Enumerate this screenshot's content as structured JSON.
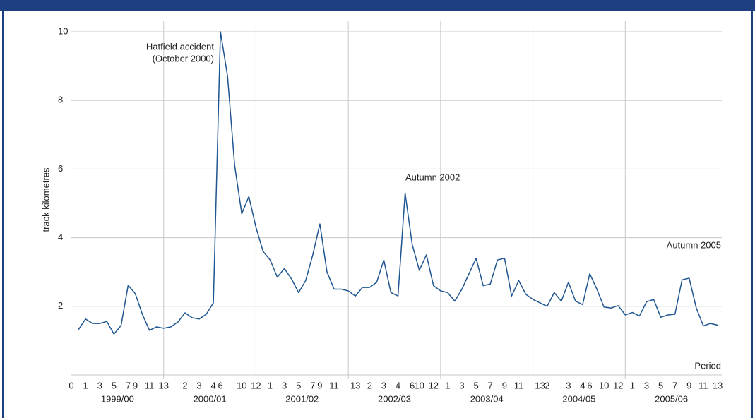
{
  "chart_data": {
    "type": "line",
    "y_label": "track kilometres",
    "x_label": "Period",
    "annotations": [
      "Hatfield accident",
      "(October 2000)",
      "Autumn 2002",
      "Autumn 2005"
    ],
    "x": [
      1,
      2,
      3,
      4,
      5,
      6,
      7,
      8,
      9,
      10,
      11,
      12,
      13,
      14,
      15,
      16,
      17,
      18,
      19,
      20,
      21,
      22,
      23,
      24,
      25,
      26,
      27,
      28,
      29,
      30,
      31,
      32,
      33,
      34,
      35,
      36,
      37,
      38,
      39,
      40,
      41,
      42,
      43,
      44,
      45,
      46,
      47,
      48,
      49,
      50,
      51,
      52,
      53,
      54,
      55,
      56,
      57,
      58,
      59,
      60,
      61,
      62,
      63,
      64,
      65,
      66,
      67,
      68,
      69,
      70,
      71,
      72,
      73,
      74,
      75,
      76,
      77,
      78,
      79,
      80,
      81,
      82,
      83,
      84,
      85,
      86,
      87,
      88,
      89,
      90,
      91
    ],
    "series": [
      {
        "color": "#1f5591",
        "values": [
          1.32,
          1.63,
          1.5,
          1.5,
          1.56,
          1.19,
          1.44,
          2.61,
          2.37,
          1.77,
          1.3,
          1.4,
          1.36,
          1.4,
          1.54,
          1.81,
          1.67,
          1.63,
          1.77,
          2.1,
          10.0,
          8.7,
          6.1,
          4.7,
          5.2,
          4.3,
          3.6,
          3.35,
          2.85,
          3.1,
          2.8,
          2.4,
          2.75,
          3.5,
          4.4,
          3.0,
          2.5,
          2.5,
          2.45,
          2.3,
          2.55,
          2.55,
          2.7,
          3.35,
          2.4,
          2.3,
          5.3,
          3.8,
          3.05,
          3.5,
          2.6,
          2.45,
          2.4,
          2.15,
          2.5,
          2.95,
          3.4,
          2.6,
          2.65,
          3.35,
          3.4,
          2.3,
          2.75,
          2.35,
          2.2,
          2.1,
          2.0,
          2.4,
          2.15,
          2.7,
          2.15,
          2.05,
          2.95,
          2.5,
          1.98,
          1.95,
          2.02,
          1.75,
          1.82,
          1.72,
          2.13,
          2.2,
          1.68,
          1.75,
          1.77,
          2.77,
          2.82,
          1.95,
          1.43,
          1.5,
          1.45
        ]
      }
    ],
    "xlim": [
      0,
      91
    ],
    "ylim": [
      0,
      10
    ],
    "yticks": [
      2,
      4,
      6,
      8,
      10
    ],
    "xticks": [
      0,
      {
        "value": 2,
        "label": "1"
      },
      {
        "value": 4,
        "label": "3"
      },
      {
        "value": 6,
        "label": "5"
      },
      {
        "value": 8,
        "label": "7"
      },
      {
        "value": 9,
        "label": "9"
      },
      {
        "value": 11,
        "label": "11"
      },
      13,
      {
        "value": 16,
        "label": "2"
      },
      {
        "value": 18,
        "label": "3"
      },
      {
        "value": 20,
        "label": "4"
      },
      {
        "value": 21,
        "label": "6"
      },
      {
        "value": 24,
        "label": "10"
      },
      {
        "value": 26,
        "label": "12"
      },
      {
        "value": 28,
        "label": "1"
      },
      {
        "value": 30,
        "label": "3"
      },
      {
        "value": 32,
        "label": "5"
      },
      {
        "value": 34,
        "label": "7"
      },
      {
        "value": 35,
        "label": "9"
      },
      {
        "value": 37,
        "label": "11"
      },
      {
        "value": 40,
        "label": "13"
      },
      {
        "value": 42,
        "label": "2"
      },
      {
        "value": 44,
        "label": "3"
      },
      {
        "value": 46,
        "label": "4"
      },
      {
        "value": 48,
        "label": "6"
      },
      {
        "value": 49,
        "label": "10"
      },
      {
        "value": 51,
        "label": "12"
      },
      {
        "value": 53,
        "label": "1"
      },
      {
        "value": 55,
        "label": "3"
      },
      {
        "value": 57,
        "label": "5"
      },
      {
        "value": 59,
        "label": "7"
      },
      {
        "value": 61,
        "label": "9"
      },
      {
        "value": 63,
        "label": "11"
      },
      {
        "value": 66,
        "label": "13"
      },
      {
        "value": 67,
        "label": "2"
      },
      {
        "value": 70,
        "label": "3"
      },
      {
        "value": 72,
        "label": "4"
      },
      {
        "value": 73,
        "label": "6"
      },
      {
        "value": 75,
        "label": "10"
      },
      {
        "value": 77,
        "label": "12"
      },
      {
        "value": 79,
        "label": "1"
      },
      {
        "value": 81,
        "label": "3"
      },
      {
        "value": 83,
        "label": "5"
      },
      {
        "value": 85,
        "label": "7"
      },
      {
        "value": 87,
        "label": "9"
      },
      {
        "value": 89,
        "label": "11"
      },
      {
        "value": 91,
        "label": "13"
      }
    ],
    "xgroups": {
      "labels": [
        "1999/00",
        "2000/01",
        "2001/02",
        "2002/03",
        "2003/04",
        "2004/05",
        "2005/06"
      ],
      "bounds": [
        0,
        13,
        26,
        39,
        52,
        65,
        78,
        91
      ]
    },
    "grid": true
  }
}
